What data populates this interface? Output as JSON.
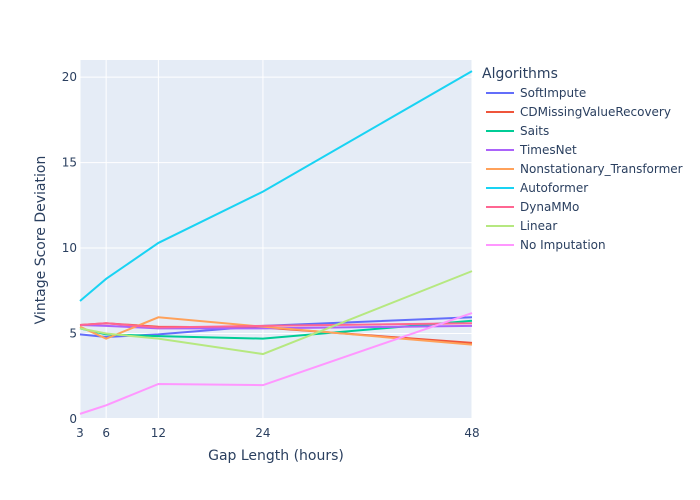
{
  "chart_data": {
    "type": "line",
    "xlabel": "Gap Length (hours)",
    "ylabel": "Vintage Score Deviation",
    "x_ticks": [
      3,
      6,
      12,
      24,
      48
    ],
    "y_ticks": [
      0,
      5,
      10,
      15,
      20
    ],
    "xlim": [
      3,
      48
    ],
    "ylim": [
      0,
      21
    ],
    "grid": true,
    "legend_title": "Algorithms",
    "legend_position": "right",
    "x": [
      3,
      6,
      12,
      24,
      48
    ],
    "series": [
      {
        "name": "SoftImpute",
        "color": "#636efa",
        "values": [
          4.95,
          4.8,
          4.95,
          5.45,
          5.95
        ]
      },
      {
        "name": "CDMissingValueRecovery",
        "color": "#ef553b",
        "values": [
          5.5,
          5.6,
          5.4,
          5.35,
          4.45
        ]
      },
      {
        "name": "Saits",
        "color": "#00cc96",
        "values": [
          5.3,
          4.95,
          4.85,
          4.7,
          5.75
        ]
      },
      {
        "name": "TimesNet",
        "color": "#ab63fa",
        "values": [
          5.5,
          5.45,
          5.3,
          5.3,
          5.45
        ]
      },
      {
        "name": "Nonstationary_Transformer",
        "color": "#ffa15a",
        "values": [
          5.4,
          4.7,
          5.95,
          5.4,
          4.35
        ]
      },
      {
        "name": "Autoformer",
        "color": "#19d3f3",
        "values": [
          6.9,
          8.2,
          10.3,
          13.3,
          20.35
        ]
      },
      {
        "name": "DynaMMo",
        "color": "#ff6692",
        "values": [
          5.5,
          5.6,
          5.35,
          5.45,
          5.6
        ]
      },
      {
        "name": "Linear",
        "color": "#b6e880",
        "values": [
          5.3,
          5.0,
          4.7,
          3.8,
          8.65
        ]
      },
      {
        "name": "No Imputation",
        "color": "#ff97ff",
        "values": [
          0.3,
          0.8,
          2.05,
          1.98,
          6.2
        ]
      }
    ]
  }
}
